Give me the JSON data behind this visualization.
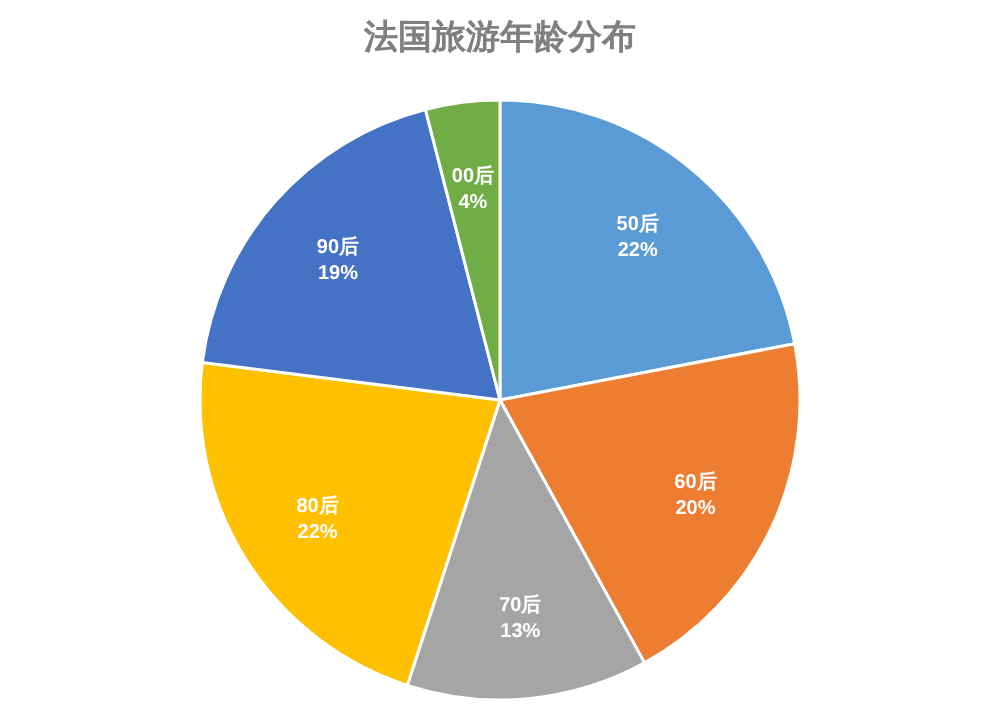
{
  "chart_data": {
    "type": "pie",
    "title": "法国旅游年龄分布",
    "categories": [
      "50后",
      "60后",
      "70后",
      "80后",
      "90后",
      "00后"
    ],
    "values": [
      22,
      20,
      13,
      22,
      19,
      4
    ],
    "colors": [
      "#5b9bd5",
      "#ed7d31",
      "#a5a5a5",
      "#ffc000",
      "#4472c4",
      "#70ad47"
    ],
    "value_labels": [
      "22%",
      "20%",
      "13%",
      "22%",
      "19%",
      "4%"
    ]
  }
}
